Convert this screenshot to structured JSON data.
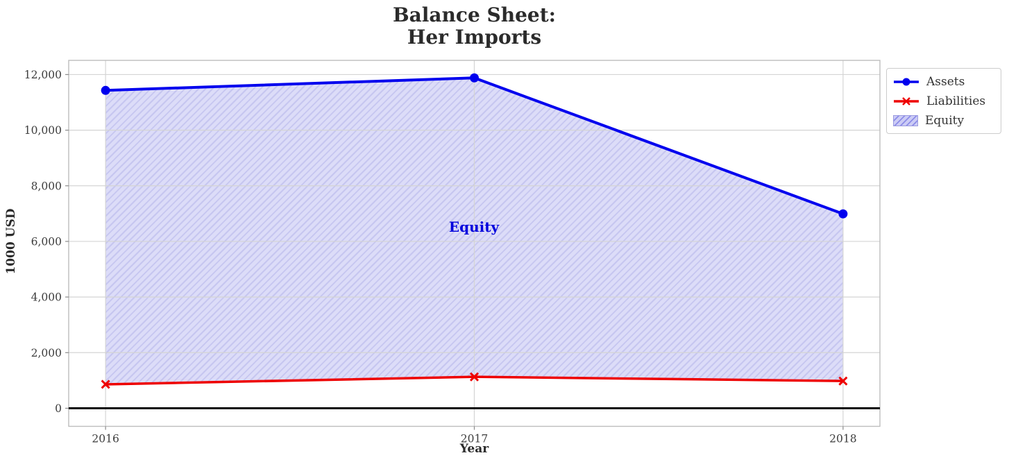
{
  "chart_data": {
    "type": "area",
    "title": "Balance Sheet:\nHer Imports",
    "xlabel": "Year",
    "ylabel": "1000 USD",
    "x": [
      2016,
      2017,
      2018
    ],
    "xtick_labels": [
      "2016",
      "2017",
      "2018"
    ],
    "yticks": [
      0,
      2000,
      4000,
      6000,
      8000,
      10000,
      12000
    ],
    "ytick_labels": [
      "0",
      "2,000",
      "4,000",
      "6,000",
      "8,000",
      "10,000",
      "12,000"
    ],
    "xlim": [
      2015.9,
      2018.1
    ],
    "ylim": [
      -650,
      12510
    ],
    "grid": true,
    "grid_color": "#d4d4d4",
    "spine_color": "#bdbdbd",
    "tick_color": "#8a8a8a",
    "tick_label_color": "#3d3d3d",
    "zero_line_color": "#000000",
    "series": [
      {
        "name": "Assets",
        "type": "line",
        "marker": "circle",
        "color": "#0000ee",
        "values": [
          11430,
          11880,
          6990
        ]
      },
      {
        "name": "Liabilities",
        "type": "line",
        "marker": "x",
        "color": "#ee0000",
        "values": [
          860,
          1130,
          980
        ]
      }
    ],
    "area": {
      "name": "Equity",
      "between": [
        "Assets",
        "Liabilities"
      ],
      "hatch": "/",
      "fill": "#dcdcf8",
      "hatch_color": "#c6c6f0",
      "legend_fill": "#ccccf5",
      "legend_hatch_color": "#8c8ce8",
      "legend_border_color": "#9a9ae0"
    },
    "annotation": {
      "text": "Equity",
      "color": "#0000dd",
      "x": 2017,
      "y": 6500
    },
    "legend": {
      "position": "upper-right-outside",
      "items": [
        {
          "label": "Assets"
        },
        {
          "label": "Liabilities"
        },
        {
          "label": "Equity"
        }
      ]
    }
  }
}
